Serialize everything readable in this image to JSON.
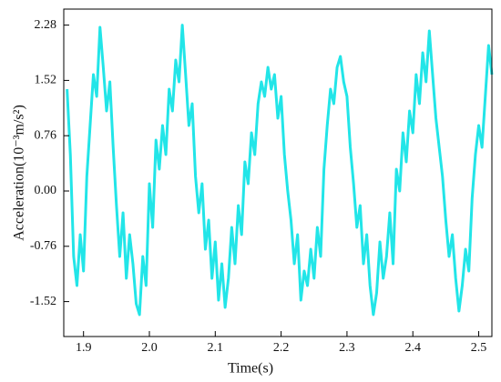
{
  "chart_data": {
    "type": "line",
    "xlabel": "Time(s)",
    "ylabel": "Acceleration(10⁻³m/s²)",
    "x": [
      1.875,
      1.88,
      1.885,
      1.89,
      1.895,
      1.9,
      1.905,
      1.91,
      1.915,
      1.92,
      1.925,
      1.93,
      1.935,
      1.94,
      1.945,
      1.95,
      1.955,
      1.96,
      1.965,
      1.97,
      1.975,
      1.98,
      1.985,
      1.99,
      1.995,
      2.0,
      2.005,
      2.01,
      2.015,
      2.02,
      2.025,
      2.03,
      2.035,
      2.04,
      2.045,
      2.05,
      2.055,
      2.06,
      2.065,
      2.07,
      2.075,
      2.08,
      2.085,
      2.09,
      2.095,
      2.1,
      2.105,
      2.11,
      2.115,
      2.12,
      2.125,
      2.13,
      2.135,
      2.14,
      2.145,
      2.15,
      2.155,
      2.16,
      2.165,
      2.17,
      2.175,
      2.18,
      2.185,
      2.19,
      2.195,
      2.2,
      2.205,
      2.21,
      2.215,
      2.22,
      2.225,
      2.23,
      2.235,
      2.24,
      2.245,
      2.25,
      2.255,
      2.26,
      2.265,
      2.27,
      2.275,
      2.28,
      2.285,
      2.29,
      2.295,
      2.3,
      2.305,
      2.31,
      2.315,
      2.32,
      2.325,
      2.33,
      2.335,
      2.34,
      2.345,
      2.35,
      2.355,
      2.36,
      2.365,
      2.37,
      2.375,
      2.38,
      2.385,
      2.39,
      2.395,
      2.4,
      2.405,
      2.41,
      2.415,
      2.42,
      2.425,
      2.43,
      2.435,
      2.44,
      2.445,
      2.45,
      2.455,
      2.46,
      2.465,
      2.47,
      2.475,
      2.48,
      2.485,
      2.49,
      2.495,
      2.5,
      2.505,
      2.51,
      2.515,
      2.52
    ],
    "series": [
      {
        "color": "#22e5e8",
        "values": [
          1.4,
          0.5,
          -0.9,
          -1.3,
          -0.6,
          -1.1,
          0.2,
          0.9,
          1.6,
          1.3,
          2.25,
          1.7,
          1.1,
          1.5,
          0.6,
          -0.2,
          -0.9,
          -0.3,
          -1.2,
          -0.6,
          -1.0,
          -1.55,
          -1.7,
          -0.9,
          -1.3,
          0.1,
          -0.5,
          0.7,
          0.3,
          0.9,
          0.5,
          1.4,
          1.1,
          1.8,
          1.5,
          2.28,
          1.6,
          0.9,
          1.2,
          0.2,
          -0.3,
          0.1,
          -0.8,
          -0.4,
          -1.2,
          -0.7,
          -1.5,
          -1.0,
          -1.6,
          -1.2,
          -0.5,
          -1.0,
          -0.2,
          -0.6,
          0.4,
          0.1,
          0.8,
          0.5,
          1.2,
          1.5,
          1.3,
          1.7,
          1.4,
          1.6,
          1.0,
          1.3,
          0.5,
          0.0,
          -0.4,
          -1.0,
          -0.6,
          -1.5,
          -1.1,
          -1.3,
          -0.8,
          -1.2,
          -0.5,
          -0.9,
          0.3,
          0.9,
          1.4,
          1.2,
          1.7,
          1.85,
          1.5,
          1.3,
          0.6,
          0.1,
          -0.5,
          -0.2,
          -1.0,
          -0.6,
          -1.3,
          -1.7,
          -1.4,
          -0.7,
          -1.2,
          -0.9,
          -0.3,
          -1.0,
          0.3,
          0.0,
          0.8,
          0.4,
          1.1,
          0.8,
          1.6,
          1.2,
          1.9,
          1.5,
          2.2,
          1.6,
          1.0,
          0.6,
          0.2,
          -0.4,
          -0.9,
          -0.6,
          -1.2,
          -1.65,
          -1.3,
          -0.8,
          -1.1,
          -0.1,
          0.5,
          0.9,
          0.6,
          1.3,
          2.0,
          1.6
        ]
      }
    ],
    "xlim": [
      1.87,
      2.52
    ],
    "ylim": [
      -2.0,
      2.5
    ],
    "xticks": [
      1.9,
      {
        "value": 2,
        "label": "2.0"
      },
      2.1,
      2.2,
      2.3,
      2.4,
      2.5
    ],
    "yticks": [
      -1.52,
      -0.76,
      {
        "value": 0,
        "label": "0.00"
      },
      0.76,
      1.52,
      2.28
    ],
    "grid": false
  }
}
